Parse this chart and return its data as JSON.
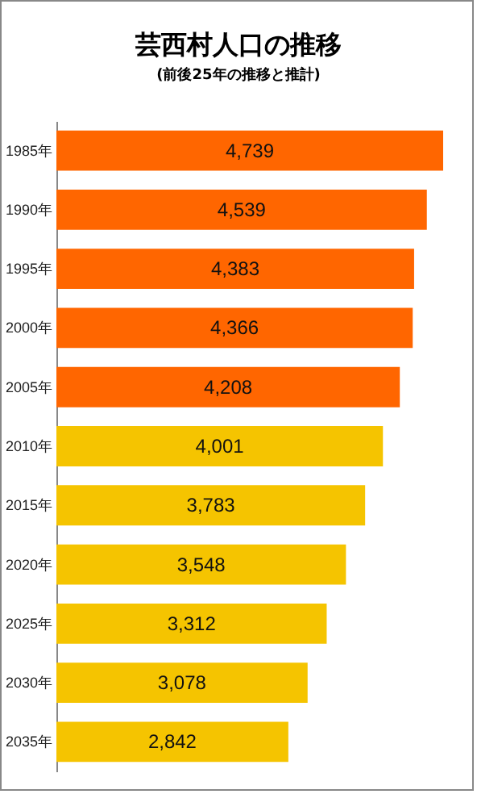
{
  "chart_data": {
    "type": "bar",
    "orientation": "horizontal",
    "title": "芸西村人口の推移",
    "subtitle": "(前後25年の推移と推計)",
    "categories": [
      "1985年",
      "1990年",
      "1995年",
      "2000年",
      "2005年",
      "2010年",
      "2015年",
      "2020年",
      "2025年",
      "2030年",
      "2035年"
    ],
    "values": [
      4739,
      4539,
      4383,
      4366,
      4208,
      4001,
      3783,
      3548,
      3312,
      3078,
      2842
    ],
    "value_labels": [
      "4,739",
      "4,539",
      "4,383",
      "4,366",
      "4,208",
      "4,001",
      "3,783",
      "3,548",
      "3,312",
      "3,078",
      "2,842"
    ],
    "colors": [
      "#ff6600",
      "#ff6600",
      "#ff6600",
      "#ff6600",
      "#ff6600",
      "#f5c400",
      "#f5c400",
      "#f5c400",
      "#f5c400",
      "#f5c400",
      "#f5c400"
    ]
  }
}
